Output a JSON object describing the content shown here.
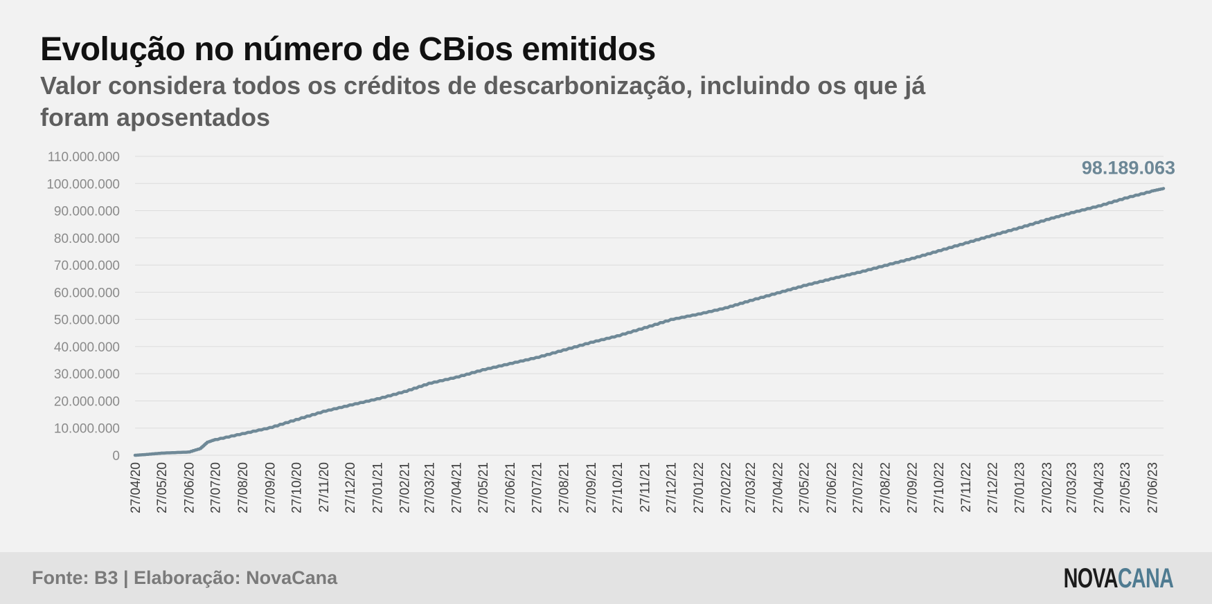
{
  "title": "Evolução no número de CBios emitidos",
  "subtitle": "Valor considera todos os créditos de descarbonização, incluindo os que já foram aposentados",
  "footer": {
    "source": "Fonte: B3 | Elaboração: NovaCana",
    "logo_part1": "NOVA",
    "logo_part2": "CANA"
  },
  "colors": {
    "line": "#6f8997",
    "accent": "#4f7b91",
    "grid": "#dcdcdc"
  },
  "chart_data": {
    "type": "line",
    "title": "Evolução no número de CBios emitidos",
    "subtitle": "Valor considera todos os créditos de descarbonização, incluindo os que já foram aposentados",
    "xlabel": "",
    "ylabel": "",
    "ylim": [
      0,
      110000000
    ],
    "y_ticks": [
      0,
      10000000,
      20000000,
      30000000,
      40000000,
      50000000,
      60000000,
      70000000,
      80000000,
      90000000,
      100000000,
      110000000
    ],
    "y_tick_labels": [
      "0",
      "10.000.000",
      "20.000.000",
      "30.000.000",
      "40.000.000",
      "50.000.000",
      "60.000.000",
      "70.000.000",
      "80.000.000",
      "90.000.000",
      "100.000.000",
      "110.000.000"
    ],
    "x_tick_labels": [
      "27/04/20",
      "27/05/20",
      "27/06/20",
      "27/07/20",
      "27/08/20",
      "27/09/20",
      "27/10/20",
      "27/11/20",
      "27/12/20",
      "27/01/21",
      "27/02/21",
      "27/03/21",
      "27/04/21",
      "27/05/21",
      "27/06/21",
      "27/07/21",
      "27/08/21",
      "27/09/21",
      "27/10/21",
      "27/11/21",
      "27/12/21",
      "27/01/22",
      "27/02/22",
      "27/03/22",
      "27/04/22",
      "27/05/22",
      "27/06/22",
      "27/07/22",
      "27/08/22",
      "27/09/22",
      "27/10/22",
      "27/11/22",
      "27/12/22",
      "27/01/23",
      "27/02/23",
      "27/03/23",
      "27/04/23",
      "27/05/23",
      "27/06/23"
    ],
    "grid": true,
    "legend": "none",
    "last_value_label": "98.189.063",
    "series": [
      {
        "x": [
          "2020-04-27",
          "2020-05-10",
          "2020-05-27",
          "2020-06-27",
          "2020-07-10",
          "2020-07-18",
          "2020-07-27",
          "2020-08-27",
          "2020-09-27",
          "2020-10-27",
          "2020-11-27",
          "2020-12-27",
          "2021-01-27",
          "2021-02-27",
          "2021-03-27",
          "2021-04-27",
          "2021-05-27",
          "2021-06-27",
          "2021-07-27",
          "2021-08-27",
          "2021-09-27",
          "2021-10-27",
          "2021-11-27",
          "2021-12-27",
          "2022-01-27",
          "2022-02-27",
          "2022-03-27",
          "2022-04-27",
          "2022-05-27",
          "2022-06-27",
          "2022-07-27",
          "2022-08-27",
          "2022-09-27",
          "2022-10-27",
          "2022-11-27",
          "2022-12-27",
          "2023-01-27",
          "2023-02-27",
          "2023-03-27",
          "2023-04-27",
          "2023-05-27",
          "2023-06-27",
          "2023-07-10"
        ],
        "values": [
          0,
          300000,
          800000,
          1200000,
          2500000,
          4800000,
          5800000,
          8000000,
          10200000,
          13200000,
          16200000,
          18500000,
          20800000,
          23500000,
          26500000,
          28800000,
          31500000,
          33800000,
          36000000,
          38800000,
          41600000,
          44000000,
          47000000,
          50000000,
          52000000,
          54300000,
          57000000,
          59800000,
          62500000,
          65000000,
          67300000,
          69900000,
          72500000,
          75300000,
          78200000,
          81000000,
          83800000,
          86800000,
          89300000,
          91800000,
          94700000,
          97300000,
          98189063
        ]
      }
    ]
  }
}
